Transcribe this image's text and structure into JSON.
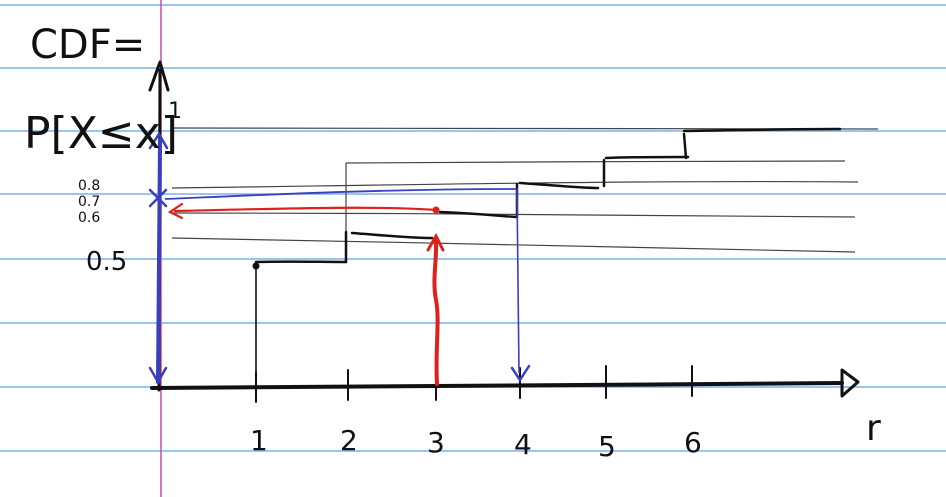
{
  "notebook": {
    "rule_color": "#7ab0e8",
    "margin_color": "#c45ab0"
  },
  "labels": {
    "cdf_title": "CDF=",
    "prob_expr": "P[X≤x]",
    "y_top": "1",
    "y_08": "0.8",
    "y_07": "0.7",
    "y_06": "0.6",
    "y_05": "0.5",
    "x_axis_var": "r"
  },
  "x_ticks": [
    "1",
    "2",
    "3",
    "4",
    "5",
    "6"
  ],
  "steps": [
    {
      "x_from": 1,
      "x_to": 2,
      "p": 0.5
    },
    {
      "x_from": 2,
      "x_to": 3,
      "p": 0.6
    },
    {
      "x_from": 3,
      "x_to": 4,
      "p": 0.65
    },
    {
      "x_from": 4,
      "x_to": 5,
      "p": 0.8
    },
    {
      "x_from": 5,
      "x_to": 6,
      "p": 0.9
    },
    {
      "x_from": 6,
      "x_to": 8,
      "p": 1.0
    }
  ],
  "colors": {
    "ink": "#111111",
    "red_arrow": "#e0201a",
    "blue_arrow": "#3a3fc0"
  }
}
